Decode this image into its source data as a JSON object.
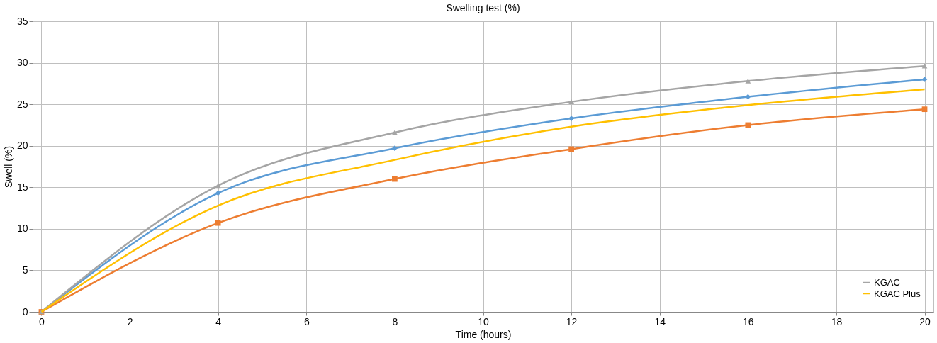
{
  "chart_data": {
    "type": "line",
    "title": "Swelling test (%)",
    "xlabel": "Time (hours)",
    "ylabel": "Swell (%)",
    "xlim": [
      -0.2,
      20.2
    ],
    "xticks": [
      0,
      2,
      4,
      6,
      8,
      10,
      12,
      14,
      16,
      18,
      20
    ],
    "ylim": [
      0,
      35
    ],
    "yticks": [
      0,
      5,
      10,
      15,
      20,
      25,
      30,
      35
    ],
    "grid": true,
    "legend": "bottom right",
    "line_style": "solid",
    "series": [
      {
        "color": "#5b9bd5",
        "marker": "diamond",
        "x": [
          0,
          4,
          8,
          12,
          16,
          20
        ],
        "values": [
          0,
          14.3,
          19.7,
          23.3,
          25.9,
          28.0
        ]
      },
      {
        "color": "#ed7d31",
        "marker": "square",
        "x": [
          0,
          4,
          8,
          12,
          16,
          20
        ],
        "values": [
          0,
          10.7,
          16.0,
          19.6,
          22.5,
          24.4
        ]
      },
      {
        "name": "KGAC",
        "color": "#a5a5a5",
        "marker": "triangle",
        "x": [
          0,
          4,
          8,
          12,
          16,
          20
        ],
        "values": [
          0,
          15.2,
          21.6,
          25.3,
          27.8,
          29.6
        ]
      },
      {
        "name": "KGAC Plus",
        "color": "#ffc000",
        "marker": "none",
        "x": [
          0,
          4,
          8,
          12,
          16,
          20
        ],
        "values": [
          0,
          12.8,
          18.3,
          22.3,
          24.9,
          26.8
        ]
      }
    ]
  }
}
